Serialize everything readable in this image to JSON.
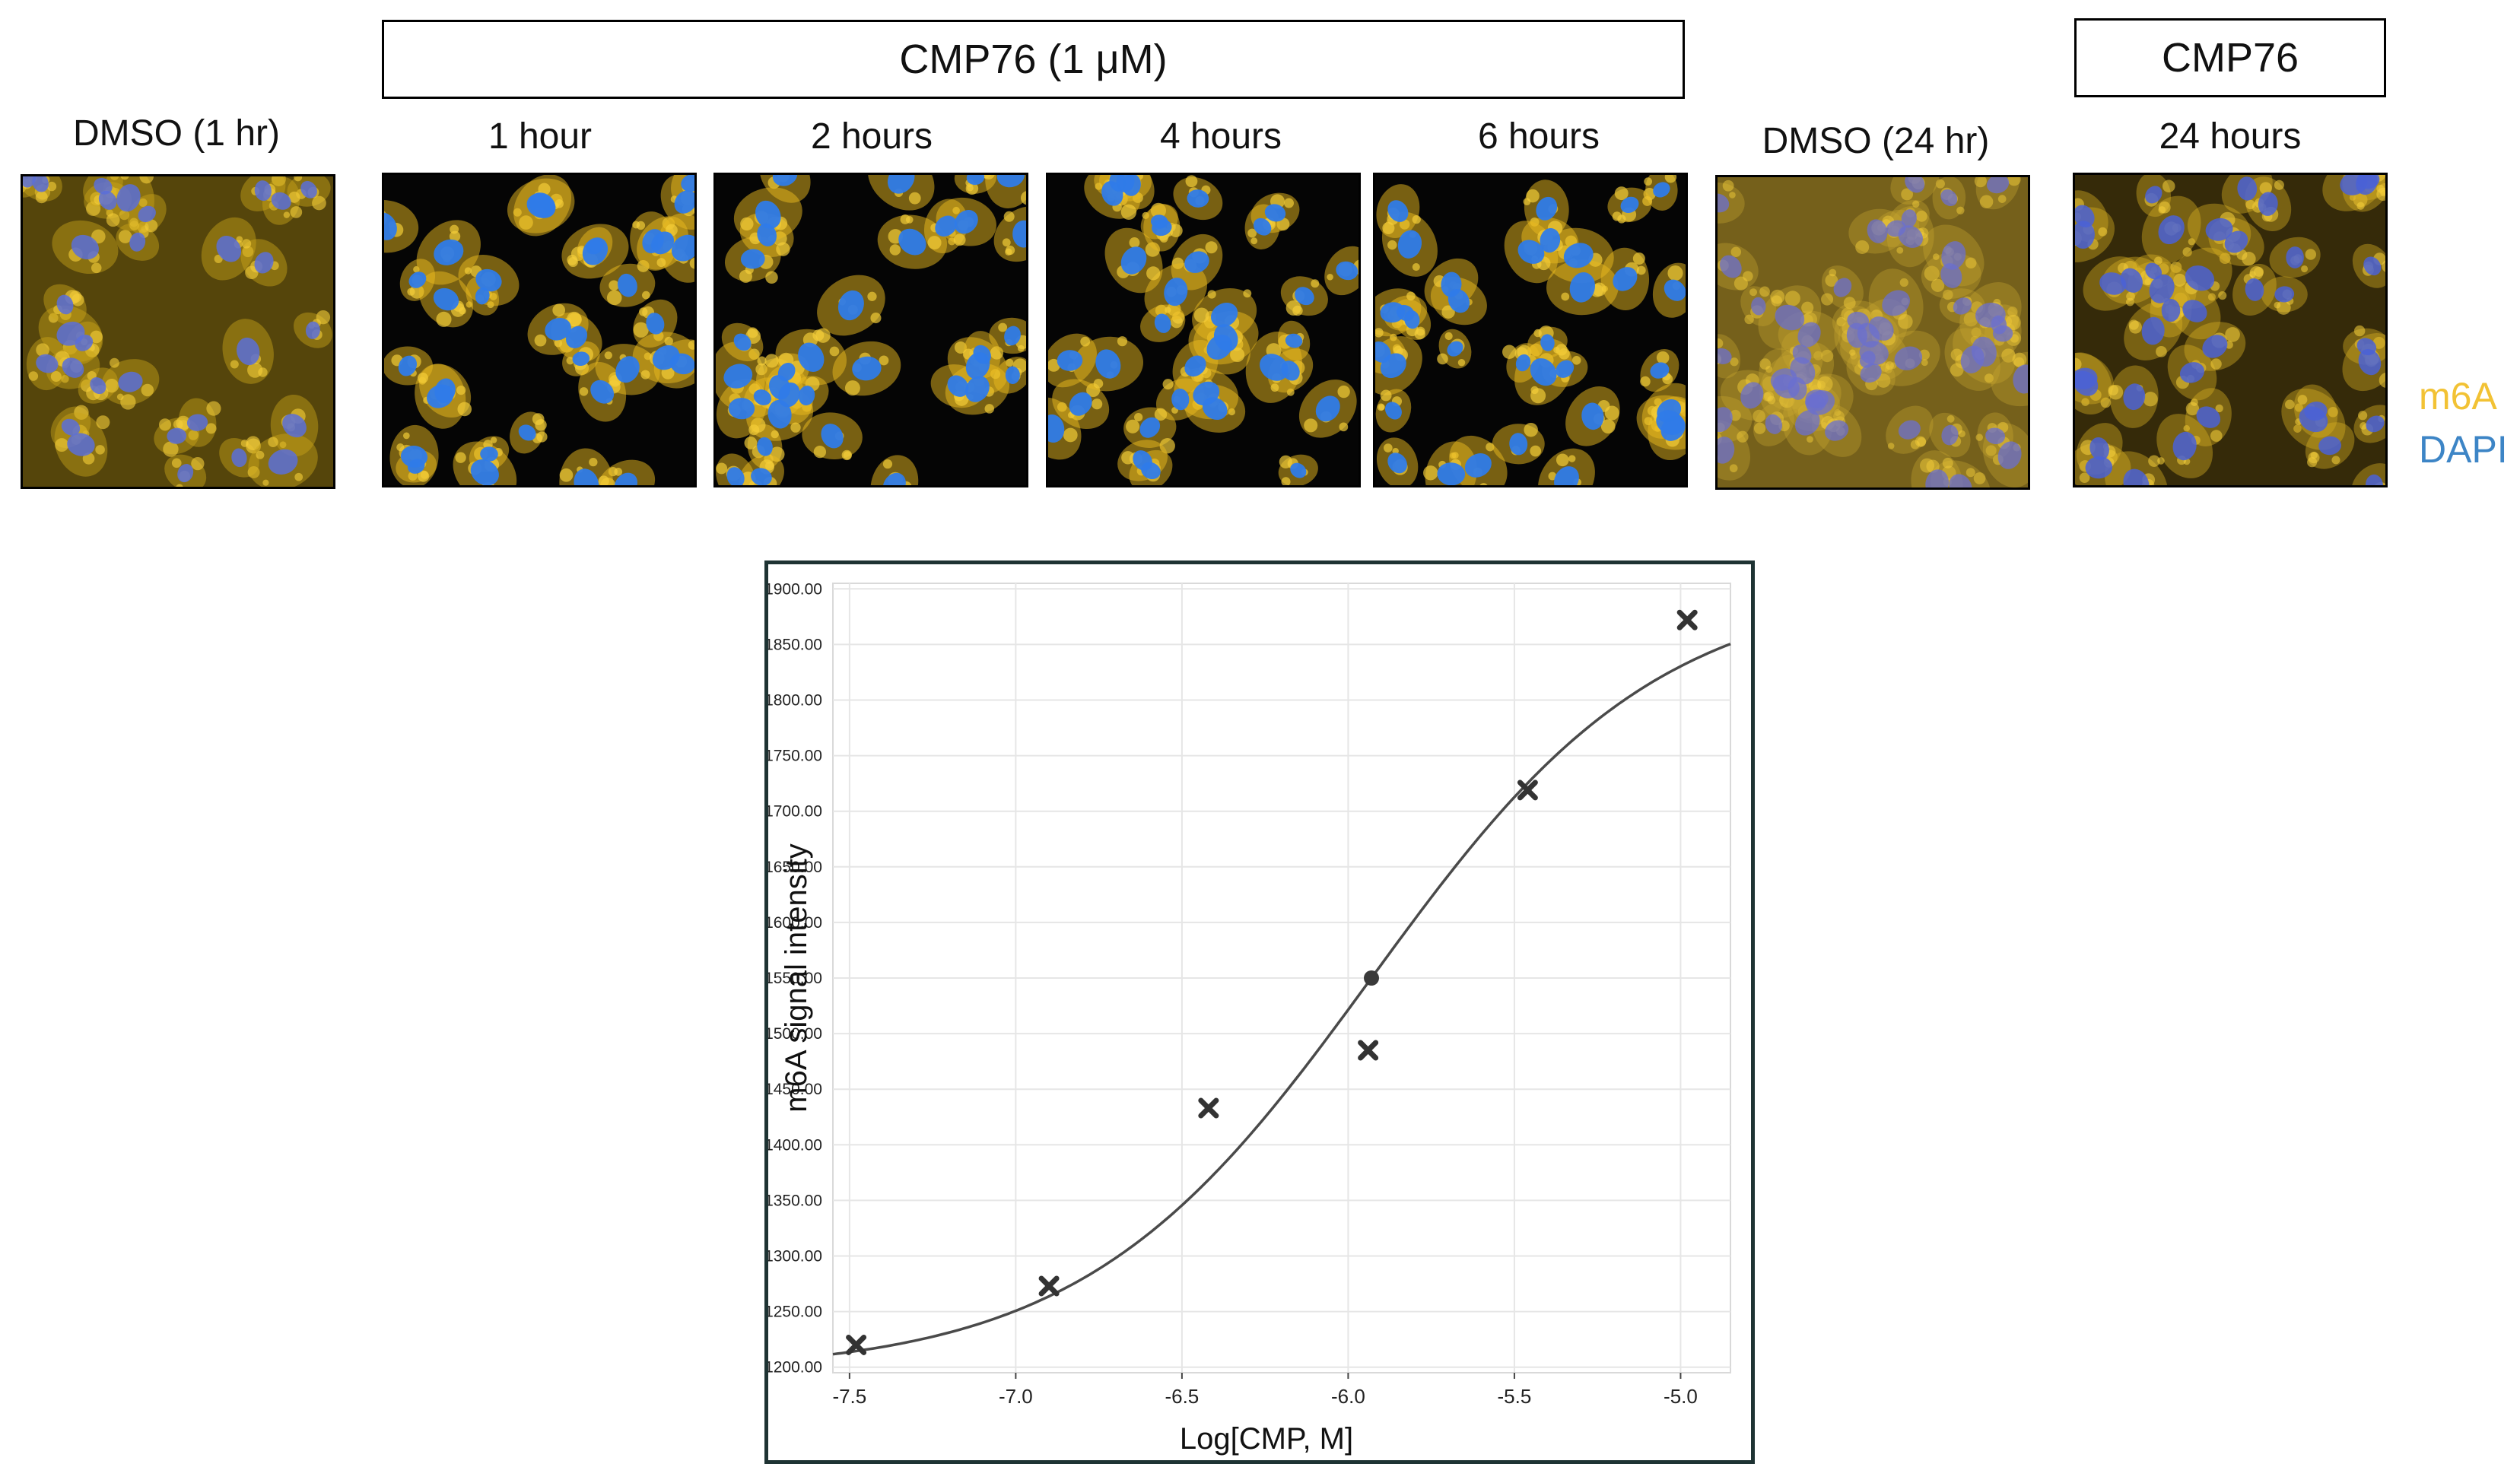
{
  "figure": {
    "header_cmp76_1um": "CMP76 (1 μM)",
    "header_cmp76": "CMP76",
    "panels": [
      {
        "label": "DMSO (1 hr)",
        "condition": "dmso"
      },
      {
        "label": "1 hour",
        "condition": "cmp"
      },
      {
        "label": "2 hours",
        "condition": "cmp"
      },
      {
        "label": "4 hours",
        "condition": "cmp"
      },
      {
        "label": "6 hours",
        "condition": "cmp"
      },
      {
        "label": "DMSO (24 hr)",
        "condition": "dmso24"
      },
      {
        "label": "24 hours",
        "condition": "cmp24"
      }
    ],
    "legend": {
      "m6a": "m6A",
      "dapi": "DAPI"
    },
    "colors": {
      "m6a": "#f2c234",
      "dapi": "#3d85c6",
      "nucleus": "#3a64d8"
    }
  },
  "chart_data": {
    "type": "scatter",
    "title": "",
    "xlabel": "Log[CMP, M]",
    "ylabel": "m6A signal intensity",
    "xlim": [
      -7.55,
      -4.85
    ],
    "ylim": [
      1195,
      1905
    ],
    "xticks": [
      -7.5,
      -7.0,
      -6.5,
      -6.0,
      -5.5,
      -5.0
    ],
    "xtick_labels": [
      "-7.5",
      "-7.0",
      "-6.5",
      "-6.0",
      "-5.5",
      "-5.0"
    ],
    "yticks": [
      1200,
      1250,
      1300,
      1350,
      1400,
      1450,
      1500,
      1550,
      1600,
      1650,
      1700,
      1750,
      1800,
      1850,
      1900
    ],
    "ytick_labels": [
      "1200.00",
      "1250.00",
      "1300.00",
      "1350.00",
      "1400.00",
      "1450.00",
      "1500.00",
      "1550.00",
      "1600.00",
      "1650.00",
      "1700.00",
      "1750.00",
      "1800.00",
      "1850.00",
      "1900.00"
    ],
    "grid": true,
    "points": {
      "x": [
        -7.48,
        -6.9,
        -6.42,
        -5.94,
        -5.46,
        -4.98
      ],
      "y": [
        1220,
        1273,
        1433,
        1485,
        1719,
        1872
      ]
    },
    "inflection_point": {
      "x": -5.93,
      "y": 1550
    },
    "fit_curve": {
      "bottom": 1195,
      "top": 1905,
      "log_ec50": -5.93,
      "hill": 1.0
    }
  }
}
